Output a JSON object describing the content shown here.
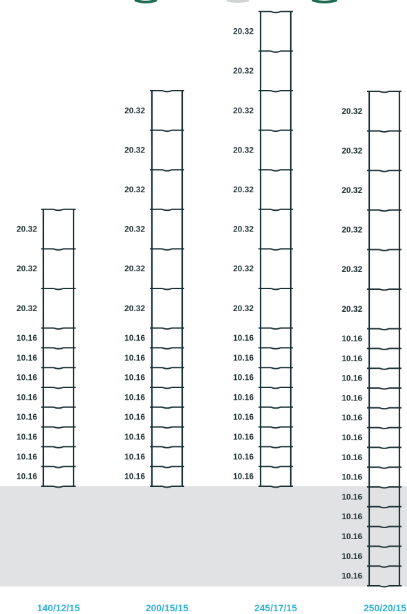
{
  "colors": {
    "wire": "#1b3238",
    "label_text": "#1e3033",
    "model_label": "#2fb1d3",
    "ground": "#e1e2e4",
    "top_arc": "#1f6b52"
  },
  "fences": [
    {
      "model": "140/12/15",
      "spacings": [
        "20.32",
        "20.32",
        "20.32",
        "10.16",
        "10.16",
        "10.16",
        "10.16",
        "10.16",
        "10.16",
        "10.16",
        "10.16"
      ]
    },
    {
      "model": "200/15/15",
      "spacings": [
        "20.32",
        "20.32",
        "20.32",
        "20.32",
        "20.32",
        "20.32",
        "10.16",
        "10.16",
        "10.16",
        "10.16",
        "10.16",
        "10.16",
        "10.16",
        "10.16"
      ]
    },
    {
      "model": "245/17/15",
      "spacings": [
        "20.32",
        "20.32",
        "20.32",
        "20.32",
        "20.32",
        "20.32",
        "20.32",
        "20.32",
        "10.16",
        "10.16",
        "10.16",
        "10.16",
        "10.16",
        "10.16",
        "10.16",
        "10.16"
      ]
    },
    {
      "model": "250/20/15",
      "spacings": [
        "20.32",
        "20.32",
        "20.32",
        "20.32",
        "20.32",
        "20.32",
        "10.16",
        "10.16",
        "10.16",
        "10.16",
        "10.16",
        "10.16",
        "10.16",
        "10.16",
        "10.16",
        "10.16",
        "10.16",
        "10.16",
        "10.16"
      ]
    }
  ]
}
